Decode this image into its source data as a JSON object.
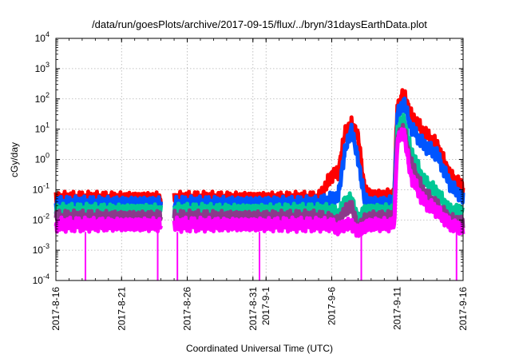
{
  "chart_data": {
    "type": "line",
    "title": "/data/run/goesPlots/archive/2017-09-15/flux/../bryn/31daysEarthData.plot",
    "xlabel": "Coordinated Universal Time (UTC)",
    "ylabel": "cGy/day",
    "yscale": "log",
    "ylim": [
      0.0001,
      10000
    ],
    "xlim": [
      "2017-08-16",
      "2017-09-16"
    ],
    "y_ticks": [
      {
        "value": 0.0001,
        "base": "10",
        "exp": "-4"
      },
      {
        "value": 0.001,
        "base": "10",
        "exp": "-3"
      },
      {
        "value": 0.01,
        "base": "10",
        "exp": "-2"
      },
      {
        "value": 0.1,
        "base": "10",
        "exp": "-1"
      },
      {
        "value": 1,
        "base": "10",
        "exp": "0"
      },
      {
        "value": 10,
        "base": "10",
        "exp": "1"
      },
      {
        "value": 100,
        "base": "10",
        "exp": "2"
      },
      {
        "value": 1000,
        "base": "10",
        "exp": "3"
      },
      {
        "value": 10000,
        "base": "10",
        "exp": "4"
      }
    ],
    "x_ticks": [
      "2017-8-16",
      "2017-8-21",
      "2017-8-26",
      "2017-8-31",
      "2017-9-1",
      "2017-9-6",
      "2017-9-11",
      "2017-9-16"
    ],
    "x_tick_dates": [
      "2017-08-16",
      "2017-08-21",
      "2017-08-26",
      "2017-08-31",
      "2017-09-01",
      "2017-09-06",
      "2017-09-11",
      "2017-09-16"
    ],
    "grid": true,
    "data_gaps": [
      [
        "2017-08-24",
        "2017-08-25"
      ]
    ],
    "series": [
      {
        "color": "#ff0000",
        "x": [
          "2017-08-16",
          "2017-08-21",
          "2017-08-24",
          "2017-08-25",
          "2017-08-31",
          "2017-09-05",
          "2017-09-06",
          "2017-09-06T12:00",
          "2017-09-07",
          "2017-09-07T12:00",
          "2017-09-08",
          "2017-09-08T12:00",
          "2017-09-09",
          "2017-09-10",
          "2017-09-10T18:00",
          "2017-09-11",
          "2017-09-11T12:00",
          "2017-09-12",
          "2017-09-13",
          "2017-09-14",
          "2017-09-15",
          "2017-09-16"
        ],
        "y": [
          0.05,
          0.05,
          0.05,
          0.05,
          0.05,
          0.05,
          0.3,
          0.35,
          8,
          15,
          6,
          0.1,
          0.06,
          0.06,
          0.07,
          60,
          150,
          30,
          8,
          3,
          0.3,
          0.12
        ]
      },
      {
        "color": "#0055ff",
        "x": [
          "2017-08-16",
          "2017-08-21",
          "2017-08-24",
          "2017-08-25",
          "2017-08-31",
          "2017-09-05",
          "2017-09-06",
          "2017-09-06T12:00",
          "2017-09-07",
          "2017-09-07T12:00",
          "2017-09-08",
          "2017-09-08T12:00",
          "2017-09-09",
          "2017-09-10",
          "2017-09-10T18:00",
          "2017-09-11",
          "2017-09-11T12:00",
          "2017-09-12",
          "2017-09-13",
          "2017-09-14",
          "2017-09-15",
          "2017-09-16"
        ],
        "y": [
          0.035,
          0.035,
          0.035,
          0.035,
          0.035,
          0.035,
          0.05,
          0.06,
          2,
          10,
          1,
          0.05,
          0.035,
          0.035,
          0.04,
          30,
          80,
          12,
          3,
          1.5,
          0.15,
          0.05
        ]
      },
      {
        "color": "#00c896",
        "x": [
          "2017-08-16",
          "2017-08-21",
          "2017-08-24",
          "2017-08-25",
          "2017-08-31",
          "2017-09-05",
          "2017-09-06",
          "2017-09-06T12:00",
          "2017-09-07",
          "2017-09-07T12:00",
          "2017-09-08",
          "2017-09-08T12:00",
          "2017-09-09",
          "2017-09-10",
          "2017-09-10T18:00",
          "2017-09-11",
          "2017-09-11T12:00",
          "2017-09-12",
          "2017-09-13",
          "2017-09-14",
          "2017-09-15",
          "2017-09-16"
        ],
        "y": [
          0.02,
          0.02,
          0.02,
          0.02,
          0.02,
          0.02,
          0.02,
          0.015,
          0.04,
          0.05,
          0.01,
          0.02,
          0.02,
          0.02,
          0.02,
          10,
          20,
          2,
          0.2,
          0.08,
          0.02,
          0.02
        ]
      },
      {
        "color": "#8b3a8b",
        "x": [
          "2017-08-16",
          "2017-08-21",
          "2017-08-24",
          "2017-08-25",
          "2017-08-31",
          "2017-09-05",
          "2017-09-06",
          "2017-09-06T12:00",
          "2017-09-07",
          "2017-09-07T12:00",
          "2017-09-08",
          "2017-09-08T12:00",
          "2017-09-09",
          "2017-09-10",
          "2017-09-10T18:00",
          "2017-09-11",
          "2017-09-11T12:00",
          "2017-09-12",
          "2017-09-13",
          "2017-09-14",
          "2017-09-15",
          "2017-09-16"
        ],
        "y": [
          0.012,
          0.012,
          0.012,
          0.012,
          0.012,
          0.012,
          0.01,
          0.008,
          0.02,
          0.03,
          0.005,
          0.01,
          0.012,
          0.012,
          0.012,
          6,
          10,
          0.8,
          0.08,
          0.03,
          0.01,
          0.008
        ]
      },
      {
        "color": "#ff00ff",
        "x": [
          "2017-08-16",
          "2017-08-21",
          "2017-08-24",
          "2017-08-25",
          "2017-08-31",
          "2017-09-05",
          "2017-09-06",
          "2017-09-06T12:00",
          "2017-09-07",
          "2017-09-07T12:00",
          "2017-09-08",
          "2017-09-08T12:00",
          "2017-09-09",
          "2017-09-10",
          "2017-09-10T18:00",
          "2017-09-11",
          "2017-09-11T12:00",
          "2017-09-12",
          "2017-09-13",
          "2017-09-14",
          "2017-09-15",
          "2017-09-16"
        ],
        "y": [
          0.007,
          0.007,
          0.007,
          0.007,
          0.007,
          0.007,
          0.007,
          0.005,
          0.007,
          0.007,
          0.004,
          0.006,
          0.007,
          0.007,
          0.007,
          4,
          8,
          0.3,
          0.04,
          0.02,
          0.007,
          0.005
        ]
      }
    ],
    "dropouts": {
      "color": "#ff00ff",
      "x": [
        "2017-08-18T06:00",
        "2017-08-23T18:00",
        "2017-08-25T06:00",
        "2017-08-31T12:00",
        "2017-09-08T06:00",
        "2017-09-15T12:00"
      ],
      "y": 0.0001
    }
  }
}
